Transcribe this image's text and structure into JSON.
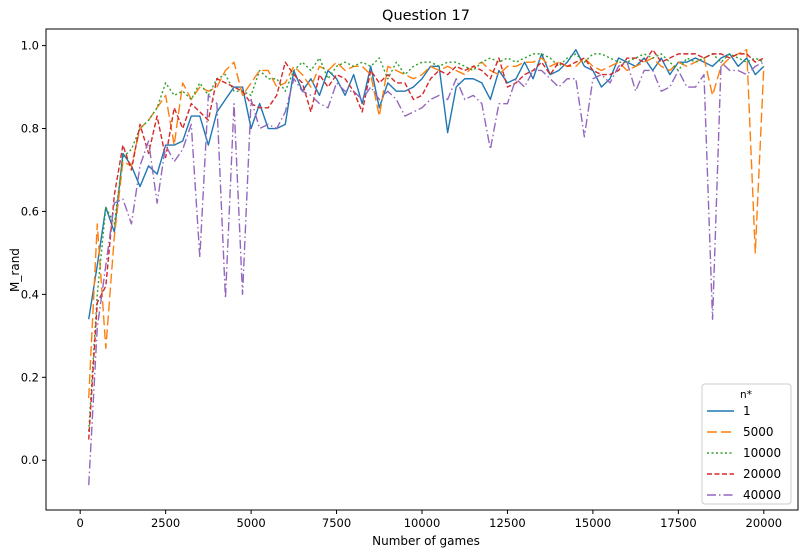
{
  "chart_data": {
    "type": "line",
    "title": "Question 17",
    "xlabel": "Number of games",
    "ylabel": "M_rand",
    "xlim": [
      -1000,
      21000
    ],
    "ylim": [
      -0.12,
      1.04
    ],
    "xticks": [
      0,
      2500,
      5000,
      7500,
      10000,
      12500,
      15000,
      17500,
      20000
    ],
    "yticks": [
      0.0,
      0.2,
      0.4,
      0.6,
      0.8,
      1.0
    ],
    "xtick_labels": [
      "0",
      "2500",
      "5000",
      "7500",
      "10000",
      "12500",
      "15000",
      "17500",
      "20000"
    ],
    "ytick_labels": [
      "0.0",
      "0.2",
      "0.4",
      "0.6",
      "0.8",
      "1.0"
    ],
    "grid": false,
    "legend": {
      "title": "n*",
      "placement": "lower-right"
    },
    "x": [
      250,
      500,
      750,
      1000,
      1250,
      1500,
      1750,
      2000,
      2250,
      2500,
      2750,
      3000,
      3250,
      3500,
      3750,
      4000,
      4250,
      4500,
      4750,
      5000,
      5250,
      5500,
      5750,
      6000,
      6250,
      6500,
      6750,
      7000,
      7250,
      7500,
      7750,
      8000,
      8250,
      8500,
      8750,
      9000,
      9250,
      9500,
      9750,
      10000,
      10250,
      10500,
      10750,
      11000,
      11250,
      11500,
      11750,
      12000,
      12250,
      12500,
      12750,
      13000,
      13250,
      13500,
      13750,
      14000,
      14250,
      14500,
      14750,
      15000,
      15250,
      15500,
      15750,
      16000,
      16250,
      16500,
      16750,
      17000,
      17250,
      17500,
      17750,
      18000,
      18250,
      18500,
      18750,
      19000,
      19250,
      19500,
      19750,
      20000
    ],
    "series": [
      {
        "name": "1",
        "color": "#1f77b4",
        "dash": "solid",
        "values": [
          0.34,
          0.47,
          0.61,
          0.55,
          0.74,
          0.71,
          0.66,
          0.71,
          0.69,
          0.76,
          0.76,
          0.77,
          0.83,
          0.83,
          0.76,
          0.84,
          0.87,
          0.9,
          0.9,
          0.8,
          0.86,
          0.8,
          0.8,
          0.81,
          0.94,
          0.89,
          0.92,
          0.88,
          0.94,
          0.92,
          0.88,
          0.93,
          0.86,
          0.95,
          0.85,
          0.91,
          0.89,
          0.89,
          0.9,
          0.92,
          0.95,
          0.95,
          0.79,
          0.9,
          0.92,
          0.92,
          0.91,
          0.87,
          0.94,
          0.91,
          0.92,
          0.96,
          0.92,
          0.98,
          0.93,
          0.94,
          0.96,
          0.99,
          0.95,
          0.94,
          0.9,
          0.92,
          0.97,
          0.96,
          0.95,
          0.97,
          0.94,
          0.97,
          0.93,
          0.96,
          0.96,
          0.97,
          0.96,
          0.95,
          0.97,
          0.98,
          0.95,
          0.97,
          0.93,
          0.95
        ]
      },
      {
        "name": "5000",
        "color": "#ff7f0e",
        "dash": "10,4",
        "values": [
          0.15,
          0.57,
          0.27,
          0.54,
          0.72,
          0.71,
          0.8,
          0.82,
          0.85,
          0.88,
          0.76,
          0.91,
          0.87,
          0.9,
          0.89,
          0.9,
          0.94,
          0.96,
          0.88,
          0.91,
          0.94,
          0.94,
          0.9,
          0.91,
          0.95,
          0.93,
          0.9,
          0.95,
          0.94,
          0.96,
          0.94,
          0.95,
          0.95,
          0.93,
          0.83,
          0.95,
          0.94,
          0.93,
          0.92,
          0.93,
          0.95,
          0.94,
          0.95,
          0.94,
          0.93,
          0.95,
          0.96,
          0.94,
          0.93,
          0.95,
          0.95,
          0.96,
          0.96,
          0.97,
          0.95,
          0.96,
          0.95,
          0.95,
          0.97,
          0.95,
          0.94,
          0.95,
          0.96,
          0.94,
          0.95,
          0.96,
          0.97,
          0.95,
          0.94,
          0.96,
          0.95,
          0.96,
          0.97,
          0.88,
          0.95,
          0.97,
          0.98,
          0.99,
          0.5,
          0.95
        ]
      },
      {
        "name": "10000",
        "color": "#2ca02c",
        "dash": "2,2.5",
        "values": [
          0.07,
          0.4,
          0.61,
          0.57,
          0.73,
          0.75,
          0.8,
          0.82,
          0.85,
          0.91,
          0.88,
          0.89,
          0.87,
          0.91,
          0.88,
          0.92,
          0.93,
          0.89,
          0.89,
          0.88,
          0.94,
          0.92,
          0.92,
          0.89,
          0.94,
          0.96,
          0.94,
          0.97,
          0.92,
          0.95,
          0.96,
          0.95,
          0.96,
          0.95,
          0.97,
          0.92,
          0.96,
          0.93,
          0.95,
          0.96,
          0.96,
          0.95,
          0.96,
          0.96,
          0.95,
          0.94,
          0.96,
          0.97,
          0.96,
          0.97,
          0.96,
          0.97,
          0.98,
          0.98,
          0.97,
          0.95,
          0.97,
          0.98,
          0.96,
          0.98,
          0.98,
          0.97,
          0.96,
          0.96,
          0.97,
          0.98,
          0.97,
          0.98,
          0.96,
          0.94,
          0.97,
          0.96,
          0.97,
          0.98,
          0.96,
          0.98,
          0.97,
          0.96,
          0.97,
          0.96
        ]
      },
      {
        "name": "20000",
        "color": "#d62728",
        "dash": "5,2.5",
        "values": [
          0.05,
          0.38,
          0.42,
          0.64,
          0.76,
          0.7,
          0.81,
          0.74,
          0.83,
          0.73,
          0.85,
          0.8,
          0.86,
          0.84,
          0.82,
          0.92,
          0.91,
          0.9,
          0.89,
          0.86,
          0.85,
          0.85,
          0.88,
          0.96,
          0.93,
          0.91,
          0.84,
          0.93,
          0.9,
          0.93,
          0.92,
          0.89,
          0.84,
          0.94,
          0.91,
          0.93,
          0.91,
          0.91,
          0.87,
          0.88,
          0.92,
          0.94,
          0.93,
          0.95,
          0.94,
          0.95,
          0.94,
          0.92,
          0.97,
          0.9,
          0.91,
          0.93,
          0.94,
          0.96,
          0.93,
          0.96,
          0.95,
          0.96,
          0.97,
          0.94,
          0.93,
          0.93,
          0.94,
          0.97,
          0.97,
          0.96,
          0.99,
          0.96,
          0.97,
          0.98,
          0.98,
          0.98,
          0.97,
          0.98,
          0.98,
          0.97,
          0.98,
          0.98,
          0.96,
          0.97
        ]
      },
      {
        "name": "40000",
        "color": "#9467bd",
        "dash": "9,3,1.5,3",
        "values": [
          -0.06,
          0.32,
          0.47,
          0.62,
          0.63,
          0.57,
          0.71,
          0.77,
          0.62,
          0.76,
          0.72,
          0.75,
          0.81,
          0.49,
          0.88,
          0.86,
          0.39,
          0.86,
          0.4,
          0.87,
          0.8,
          0.81,
          0.8,
          0.84,
          0.92,
          0.89,
          0.88,
          0.86,
          0.85,
          0.91,
          0.89,
          0.89,
          0.87,
          0.9,
          0.87,
          0.89,
          0.87,
          0.83,
          0.84,
          0.85,
          0.87,
          0.88,
          0.87,
          0.92,
          0.87,
          0.88,
          0.86,
          0.75,
          0.86,
          0.86,
          0.92,
          0.9,
          0.94,
          0.94,
          0.92,
          0.9,
          0.92,
          0.92,
          0.78,
          0.92,
          0.93,
          0.91,
          0.95,
          0.96,
          0.89,
          0.94,
          0.94,
          0.89,
          0.9,
          0.94,
          0.9,
          0.9,
          0.93,
          0.34,
          0.96,
          0.94,
          0.94,
          0.93,
          0.95,
          0.96
        ]
      }
    ]
  }
}
